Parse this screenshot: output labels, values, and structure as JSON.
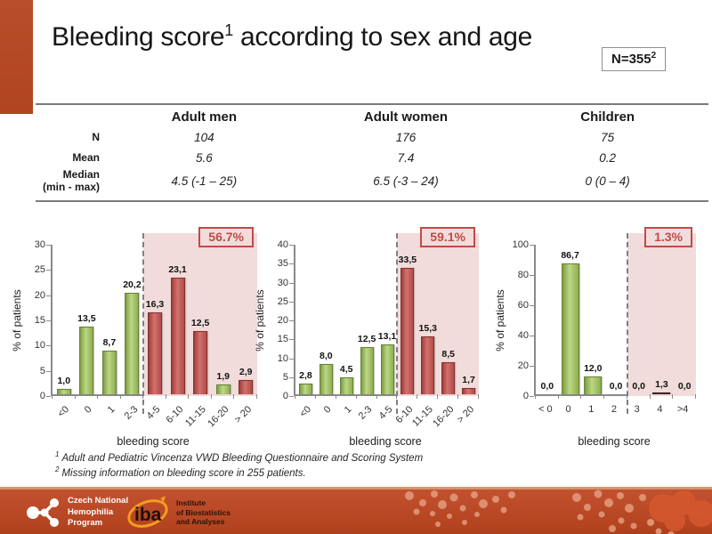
{
  "header": {
    "title_main": "Bleeding score",
    "title_sup": "1",
    "title_rest": " according to sex and age",
    "n_label": "N=355",
    "n_sup": "2"
  },
  "table": {
    "columns": [
      "Adult men",
      "Adult women",
      "Children"
    ],
    "rows": [
      {
        "label": "N",
        "values": [
          "104",
          "176",
          "75"
        ]
      },
      {
        "label": "Mean",
        "values": [
          "5.6",
          "7.4",
          "0.2"
        ]
      },
      {
        "label": "Median\n(min - max)",
        "values": [
          "4.5 (-1 – 25)",
          "6.5 (-3 – 24)",
          "0 (0 – 4)"
        ]
      }
    ]
  },
  "chart_data": [
    {
      "type": "bar",
      "group": "Adult men",
      "title": "",
      "categories": [
        "<0",
        "0",
        "1",
        "2-3",
        "4-5",
        "6-10",
        "11-15",
        "16-20",
        "> 20"
      ],
      "values": [
        1.0,
        13.5,
        8.7,
        20.2,
        16.3,
        23.1,
        12.5,
        1.9,
        2.9
      ],
      "value_labels": [
        "1,0",
        "13,5",
        "8,7",
        "20,2",
        "16,3",
        "23,1",
        "12,5",
        "1,9",
        "2,9"
      ],
      "bar_colors": [
        "green",
        "green",
        "green",
        "green",
        "red",
        "red",
        "red",
        "green",
        "red"
      ],
      "ylabel": "% of patients",
      "xlabel": "bleeding score",
      "ylim": [
        0,
        30
      ],
      "ytick_step": 5,
      "threshold_index": 4,
      "annotation": "56.7%",
      "rotated_xlabels": true,
      "legend_position": "none",
      "grid": false
    },
    {
      "type": "bar",
      "group": "Adult women",
      "title": "",
      "categories": [
        "<0",
        "0",
        "1",
        "2-3",
        "4-5",
        "6-10",
        "11-15",
        "16-20",
        "> 20"
      ],
      "values": [
        2.8,
        8.0,
        4.5,
        12.5,
        13.1,
        33.5,
        15.3,
        8.5,
        1.7
      ],
      "value_labels": [
        "2,8",
        "8,0",
        "4,5",
        "12,5",
        "13,1",
        "33,5",
        "15,3",
        "8,5",
        "1,7"
      ],
      "bar_colors": [
        "green",
        "green",
        "green",
        "green",
        "green",
        "red",
        "red",
        "red",
        "red"
      ],
      "ylabel": "% of patients",
      "xlabel": "bleeding score",
      "ylim": [
        0,
        40
      ],
      "ytick_step": 5,
      "threshold_index": 5,
      "annotation": "59.1%",
      "rotated_xlabels": true,
      "legend_position": "none",
      "grid": false
    },
    {
      "type": "bar",
      "group": "Children",
      "title": "",
      "categories": [
        "< 0",
        "0",
        "1",
        "2",
        "3",
        "4",
        ">4"
      ],
      "values": [
        0.0,
        86.7,
        12.0,
        0.0,
        0.0,
        1.3,
        0.0
      ],
      "value_labels": [
        "0,0",
        "86,7",
        "12,0",
        "0,0",
        "0,0",
        "1,3",
        "0,0"
      ],
      "bar_colors": [
        "green",
        "green",
        "green",
        "green",
        "green",
        "dark",
        "green"
      ],
      "ylabel": "% of patients",
      "xlabel": "bleeding score",
      "ylim": [
        0,
        100
      ],
      "ytick_step": 20,
      "threshold_index": 4,
      "annotation": "1.3%",
      "rotated_xlabels": false,
      "legend_position": "none",
      "grid": false
    }
  ],
  "footnotes": [
    {
      "sup": "1",
      "text": "Adult and Pediatric Vincenza VWD Bleeding Questionnaire and Scoring System"
    },
    {
      "sup": "2",
      "text": "Missing information on bleeding score in 255 patients."
    }
  ],
  "footer": {
    "cnhp_lines": "Czech National\nHemophilia\nProgram",
    "iba_name": "iba",
    "iba_lines": "Institute\nof Biostatistics\nand Analyses"
  },
  "colors": {
    "accent": "#B54B2B",
    "bar_green": "#9BBB59",
    "bar_red": "#C0504D",
    "bar_dark": "#5A2422",
    "shade": "#F1DCDB",
    "annotation": "#BF4B47",
    "footer": "#B4431F"
  }
}
